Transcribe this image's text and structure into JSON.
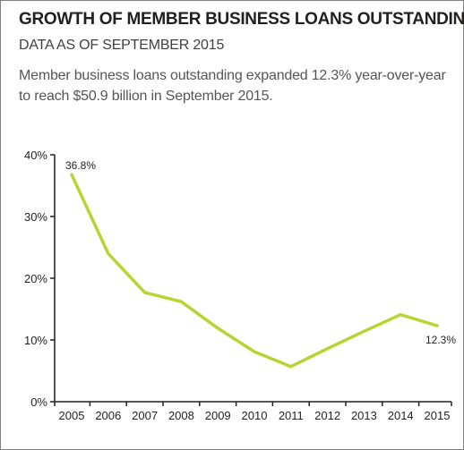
{
  "header": {
    "title": "GROWTH OF MEMBER BUSINESS LOANS OUTSTANDING",
    "subtitle": "DATA AS OF SEPTEMBER 2015",
    "description": "Member business loans outstanding expanded 12.3% year-over-year to reach $50.9 billion in September 2015."
  },
  "chart_data": {
    "type": "line",
    "x": [
      "2005",
      "2006",
      "2007",
      "2008",
      "2009",
      "2010",
      "2011",
      "2012",
      "2013",
      "2014",
      "2015"
    ],
    "series": [
      {
        "values": [
          36.8,
          24.0,
          17.7,
          16.2,
          11.9,
          8.1,
          5.7,
          8.6,
          11.4,
          14.1,
          12.3
        ],
        "color": "#b8d433"
      }
    ],
    "data_labels": [
      {
        "index": 0,
        "text": "36.8%"
      },
      {
        "index": 10,
        "text": "12.3%"
      }
    ],
    "y_ticks": [
      "0%",
      "10%",
      "20%",
      "30%",
      "40%"
    ],
    "ylim": [
      0,
      40
    ],
    "grid": false,
    "legend": "none",
    "axis_color": "#231f20"
  }
}
